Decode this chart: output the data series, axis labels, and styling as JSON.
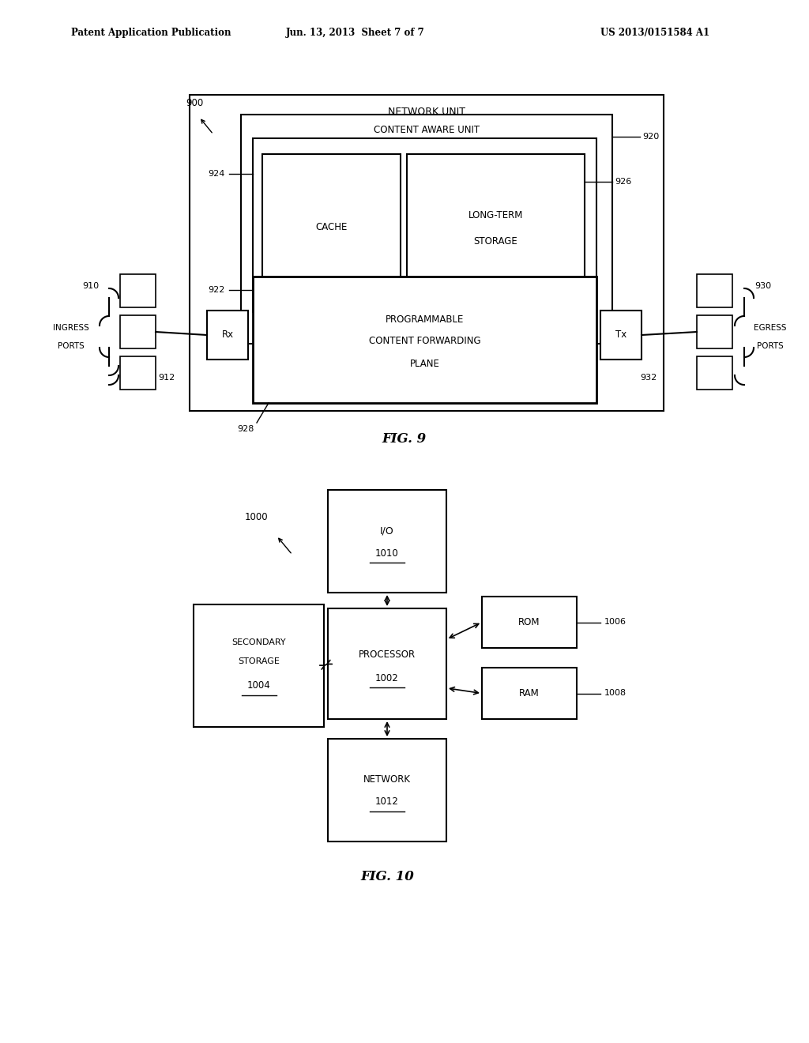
{
  "bg_color": "#ffffff",
  "header_left": "Patent Application Publication",
  "header_mid": "Jun. 13, 2013  Sheet 7 of 7",
  "header_right": "US 2013/0151584 A1",
  "fig9_label": "FIG. 9",
  "fig10_label": "FIG. 10"
}
